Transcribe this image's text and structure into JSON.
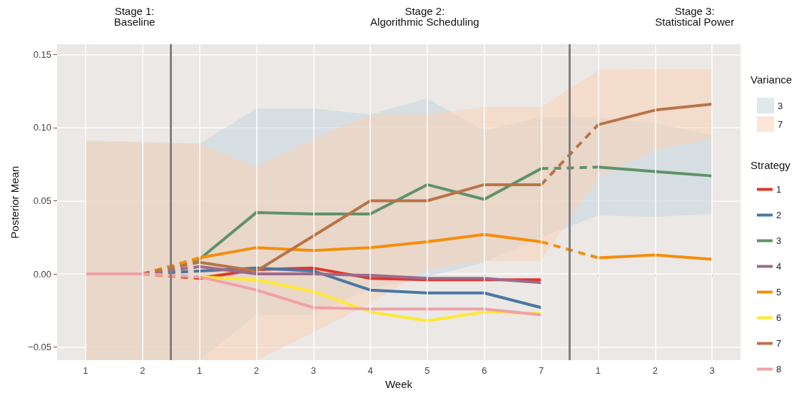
{
  "chart_data": {
    "type": "line",
    "xlabel": "Week",
    "ylabel": "Posterior Mean",
    "legend": "right",
    "legend_title": [
      "Variance",
      "Strategy"
    ],
    "grid": true,
    "categories": [
      "1",
      "2",
      "1",
      "2",
      "3",
      "4",
      "5",
      "6",
      "7",
      "1",
      "2",
      "3"
    ],
    "ylim": [
      -0.059,
      0.157
    ],
    "yticks": [
      {
        "value": -0.05,
        "label": "−0.05"
      },
      {
        "value": 0,
        "label": "0.00"
      },
      {
        "value": 0.05,
        "label": "0.05"
      },
      {
        "value": 0.1,
        "label": "0.10"
      },
      {
        "value": 0.15,
        "label": "0.15"
      }
    ],
    "annotations": [
      "Stage 1:\nBaseline",
      "Stage 2:\nAlgorithmic Scheduling",
      "Stage 3:\nStatistical Power"
    ],
    "series": [
      {
        "type": "area",
        "name": "3",
        "color": "#c4d6dc",
        "values": [
          null,
          null,
          null,
          null,
          null,
          null,
          null,
          null,
          null,
          null,
          null,
          null
        ],
        "lower": [
          -0.059,
          -0.059,
          -0.059,
          -0.028,
          -0.028,
          -0.01,
          -0.002,
          0.008,
          0.025,
          0.04,
          0.039,
          0.041
        ],
        "upper": [
          0.091,
          0.09,
          0.089,
          0.113,
          0.113,
          0.109,
          0.12,
          0.098,
          0.107,
          0.107,
          0.103,
          0.095
        ]
      },
      {
        "type": "area",
        "name": "7",
        "color": "#fad2b6",
        "values": [
          null,
          null,
          null,
          null,
          null,
          null,
          null,
          null,
          null,
          null,
          null,
          null
        ],
        "lower": [
          -0.059,
          -0.059,
          -0.059,
          -0.059,
          -0.04,
          -0.02,
          0.003,
          0.009,
          0.009,
          0.066,
          0.085,
          0.092
        ],
        "upper": [
          0.091,
          0.09,
          0.089,
          0.073,
          0.092,
          0.109,
          0.109,
          0.114,
          0.114,
          0.139,
          0.14,
          0.14
        ]
      },
      {
        "name": "1",
        "color": "#e0352b",
        "values": [
          0,
          0,
          -0.003,
          0.003,
          0.004,
          -0.003,
          -0.004,
          -0.004,
          -0.004,
          null,
          null,
          null
        ]
      },
      {
        "name": "2",
        "color": "#4a77a3",
        "values": [
          0,
          0,
          0.002,
          0.004,
          0.002,
          -0.011,
          -0.013,
          -0.013,
          -0.023,
          null,
          null,
          null
        ]
      },
      {
        "name": "3",
        "color": "#5f9268",
        "values": [
          0,
          0,
          0.01,
          0.042,
          0.041,
          0.041,
          0.061,
          0.051,
          0.072,
          0.073,
          0.07,
          0.067
        ]
      },
      {
        "name": "4",
        "color": "#9d6b8c",
        "values": [
          0,
          0,
          0.005,
          0.0,
          0.0,
          -0.001,
          -0.003,
          -0.003,
          -0.006,
          null,
          null,
          null
        ]
      },
      {
        "name": "5",
        "color": "#f58e0b",
        "values": [
          0,
          0,
          0.011,
          0.018,
          0.016,
          0.018,
          0.022,
          0.027,
          0.022,
          0.011,
          0.013,
          0.01
        ]
      },
      {
        "name": "6",
        "color": "#ffe933",
        "values": [
          0,
          0,
          -0.002,
          -0.004,
          -0.012,
          -0.026,
          -0.032,
          -0.026,
          -0.027,
          null,
          null,
          null
        ]
      },
      {
        "name": "7",
        "color": "#b87447",
        "values": [
          0,
          0,
          0.008,
          0.002,
          0.026,
          0.05,
          0.05,
          0.061,
          0.061,
          0.102,
          0.112,
          0.116
        ]
      },
      {
        "name": "8",
        "color": "#f0a0a8",
        "values": [
          0,
          0,
          -0.002,
          -0.011,
          -0.023,
          -0.024,
          -0.024,
          -0.024,
          -0.028,
          null,
          null,
          null
        ]
      }
    ]
  }
}
